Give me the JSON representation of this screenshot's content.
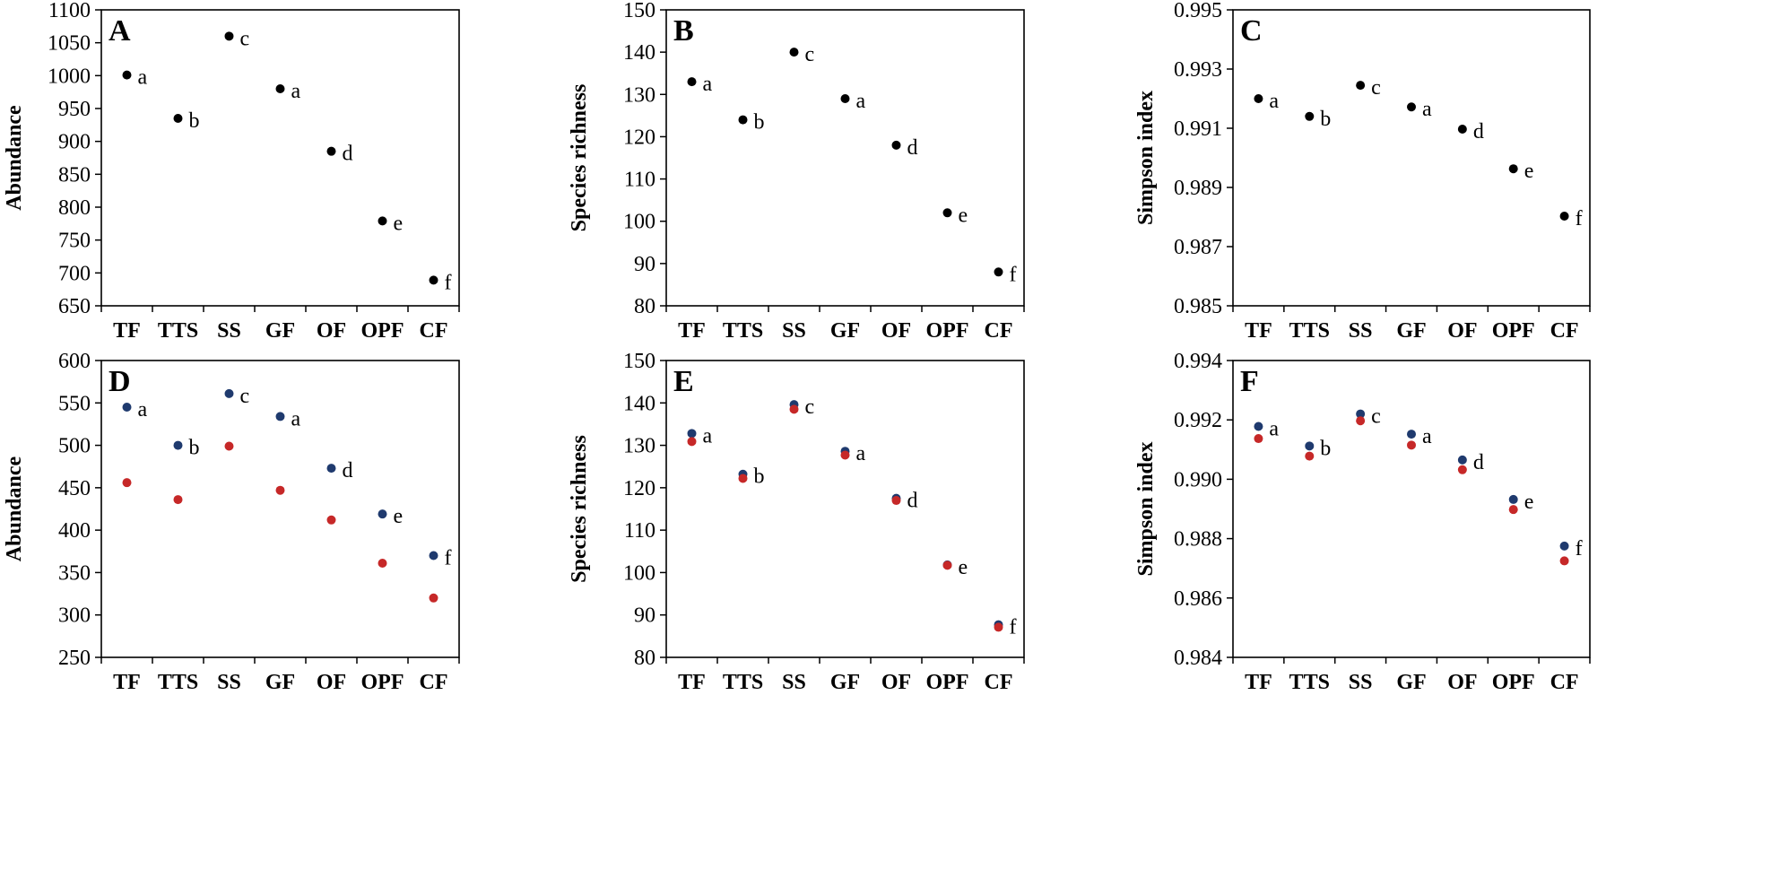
{
  "colors": {
    "black": "#000000",
    "navy": "#1f3a6e",
    "red": "#c62828"
  },
  "chart_data": [
    {
      "type": "scatter",
      "panel": "A",
      "categories": [
        "TF",
        "TTS",
        "SS",
        "GF",
        "OF",
        "OPF",
        "CF"
      ],
      "ylabel": "Abundance",
      "ylim": [
        650,
        1100
      ],
      "yticks": [
        "650",
        "700",
        "750",
        "800",
        "850",
        "900",
        "950",
        "1000",
        "1050",
        "1100"
      ],
      "series": [
        {
          "color": "#000000",
          "values": [
            1001,
            935,
            1060,
            980,
            885,
            779,
            689
          ]
        }
      ],
      "letters": [
        "a",
        "b",
        "c",
        "a",
        "d",
        "e",
        "f"
      ]
    },
    {
      "type": "scatter",
      "panel": "B",
      "categories": [
        "TF",
        "TTS",
        "SS",
        "GF",
        "OF",
        "OPF",
        "CF"
      ],
      "ylabel": "Species richness",
      "ylim": [
        80,
        150
      ],
      "yticks": [
        "80",
        "90",
        "100",
        "110",
        "120",
        "130",
        "140",
        "150"
      ],
      "series": [
        {
          "color": "#000000",
          "values": [
            133,
            124,
            140,
            129,
            118,
            102,
            88
          ]
        }
      ],
      "letters": [
        "a",
        "b",
        "c",
        "a",
        "d",
        "e",
        "f"
      ]
    },
    {
      "type": "scatter",
      "panel": "C",
      "categories": [
        "TF",
        "TTS",
        "SS",
        "GF",
        "OF",
        "OPF",
        "CF"
      ],
      "ylabel": "Simpson index",
      "ylim": [
        0.985,
        0.995
      ],
      "yticks": [
        "0.985",
        "0.987",
        "0.989",
        "0.991",
        "0.993",
        "0.995"
      ],
      "series": [
        {
          "color": "#000000",
          "values": [
            0.992,
            0.9914,
            0.99245,
            0.99172,
            0.99097,
            0.98963,
            0.98803
          ]
        }
      ],
      "letters": [
        "a",
        "b",
        "c",
        "a",
        "d",
        "e",
        "f"
      ]
    },
    {
      "type": "scatter",
      "panel": "D",
      "categories": [
        "TF",
        "TTS",
        "SS",
        "GF",
        "OF",
        "OPF",
        "CF"
      ],
      "ylabel": "Abundance",
      "ylim": [
        250,
        600
      ],
      "yticks": [
        "250",
        "300",
        "350",
        "400",
        "450",
        "500",
        "550",
        "600"
      ],
      "series": [
        {
          "color": "#1f3a6e",
          "values": [
            545,
            500,
            561,
            534,
            473,
            419,
            370
          ]
        },
        {
          "color": "#c62828",
          "values": [
            456,
            436,
            499,
            447,
            412,
            361,
            320
          ]
        }
      ],
      "letters": [
        "a",
        "b",
        "c",
        "a",
        "d",
        "e",
        "f"
      ]
    },
    {
      "type": "scatter",
      "panel": "E",
      "categories": [
        "TF",
        "TTS",
        "SS",
        "GF",
        "OF",
        "OPF",
        "CF"
      ],
      "ylabel": "Species richness",
      "ylim": [
        80,
        150
      ],
      "yticks": [
        "80",
        "90",
        "100",
        "110",
        "120",
        "130",
        "140",
        "150"
      ],
      "series": [
        {
          "color": "#1f3a6e",
          "values": [
            132.8,
            123.2,
            139.6,
            128.6,
            117.5,
            101.8,
            87.7
          ]
        },
        {
          "color": "#c62828",
          "values": [
            130.9,
            122.2,
            138.5,
            127.7,
            117.0,
            101.7,
            87.1
          ]
        }
      ],
      "letters": [
        "a",
        "b",
        "c",
        "a",
        "d",
        "e",
        "f"
      ]
    },
    {
      "type": "scatter",
      "panel": "F",
      "categories": [
        "TF",
        "TTS",
        "SS",
        "GF",
        "OF",
        "OPF",
        "CF"
      ],
      "ylabel": "Simpson index",
      "ylim": [
        0.984,
        0.994
      ],
      "yticks": [
        "0.984",
        "0.986",
        "0.988",
        "0.990",
        "0.992",
        "0.994"
      ],
      "series": [
        {
          "color": "#1f3a6e",
          "values": [
            0.99178,
            0.99112,
            0.9922,
            0.99152,
            0.99065,
            0.98932,
            0.98775
          ]
        },
        {
          "color": "#c62828",
          "values": [
            0.99137,
            0.99078,
            0.99197,
            0.99115,
            0.99032,
            0.98898,
            0.98725
          ]
        }
      ],
      "letters": [
        "a",
        "b",
        "c",
        "a",
        "d",
        "e",
        "f"
      ]
    }
  ]
}
